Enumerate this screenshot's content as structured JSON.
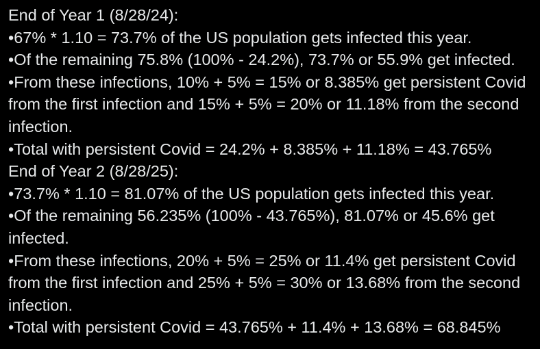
{
  "page": {
    "background_color": "#000000",
    "text_color": "#e7e9ea"
  },
  "post": {
    "lines": [
      {
        "type": "heading",
        "text": "End of Year 1 (8/28/24):"
      },
      {
        "type": "bullet",
        "text": "•67% * 1.10 = 73.7% of the US population gets infected this year."
      },
      {
        "type": "bullet",
        "text": "•Of the remaining 75.8% (100% - 24.2%), 73.7% or 55.9% get infected."
      },
      {
        "type": "bullet",
        "text": "•From these infections, 10% + 5% = 15% or 8.385% get persistent Covid"
      },
      {
        "type": "bullet-continuation",
        "text": "from the first infection and 15% + 5% = 20% or 11.18% from the second"
      },
      {
        "type": "bullet-continuation",
        "text": "infection."
      },
      {
        "type": "bullet",
        "text": "•Total with persistent Covid = 24.2% + 8.385% + 11.18% = 43.765%"
      },
      {
        "type": "heading",
        "text": "End of Year 2 (8/28/25):"
      },
      {
        "type": "bullet",
        "text": "•73.7% * 1.10 = 81.07% of the US population gets infected this year."
      },
      {
        "type": "bullet",
        "text": "•Of the remaining 56.235% (100% - 43.765%), 81.07% or 45.6% get"
      },
      {
        "type": "bullet-continuation",
        "text": "infected."
      },
      {
        "type": "bullet",
        "text": "•From these infections, 20% + 5% = 25% or 11.4% get persistent Covid"
      },
      {
        "type": "bullet-continuation",
        "text": "from the first infection and 25% + 5% = 30% or 13.68% from the second"
      },
      {
        "type": "bullet-continuation",
        "text": "infection."
      },
      {
        "type": "bullet",
        "text": "•Total with persistent Covid = 43.765% + 11.4% + 13.68% = 68.845%"
      }
    ]
  }
}
